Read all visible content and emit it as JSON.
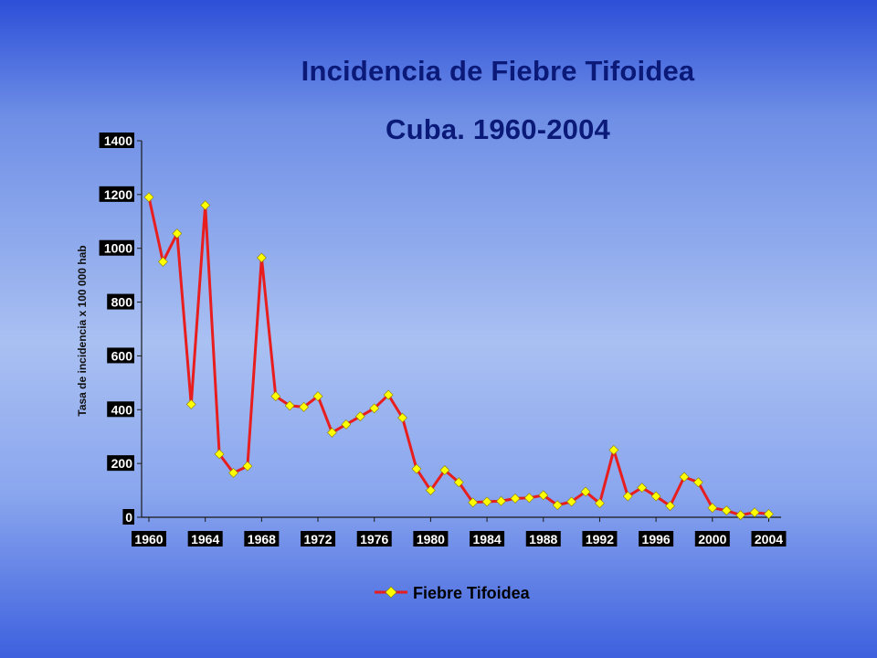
{
  "chart_data": {
    "type": "line",
    "title": "Incidencia de Fiebre Tifoidea",
    "subtitle": "Cuba. 1960-2004",
    "ylabel": "Tasa de incidencia x 100 000 hab",
    "xlabel": "",
    "ylim": [
      0,
      1400
    ],
    "yticks": [
      "0",
      "200",
      "400",
      "600",
      "800",
      "1000",
      "1200",
      "1400"
    ],
    "xticks": [
      "1960",
      "1964",
      "1968",
      "1972",
      "1976",
      "1980",
      "1984",
      "1988",
      "1992",
      "1996",
      "2000",
      "2004"
    ],
    "x": [
      1960,
      1961,
      1962,
      1963,
      1964,
      1965,
      1966,
      1967,
      1968,
      1969,
      1970,
      1971,
      1972,
      1973,
      1974,
      1975,
      1976,
      1977,
      1978,
      1979,
      1980,
      1981,
      1982,
      1983,
      1984,
      1985,
      1986,
      1987,
      1988,
      1989,
      1990,
      1991,
      1992,
      1993,
      1994,
      1995,
      1996,
      1997,
      1998,
      1999,
      2000,
      2001,
      2002,
      2003,
      2004
    ],
    "series": [
      {
        "name": "Fiebre Tifoidea",
        "line_color": "#e81e1e",
        "marker_color": "#ffff00",
        "values": [
          1190,
          950,
          1055,
          420,
          1160,
          235,
          165,
          190,
          965,
          450,
          415,
          410,
          450,
          315,
          345,
          375,
          405,
          455,
          370,
          180,
          100,
          175,
          130,
          55,
          58,
          60,
          70,
          72,
          82,
          45,
          58,
          95,
          52,
          250,
          78,
          110,
          78,
          42,
          150,
          130,
          35,
          25,
          8,
          18,
          12
        ]
      }
    ],
    "legend": {
      "position": "bottom-center"
    },
    "grid": false
  },
  "colors": {
    "title": "#0b1a78",
    "tick_label_bg": "#000000",
    "tick_label_text": "#ffffff"
  }
}
